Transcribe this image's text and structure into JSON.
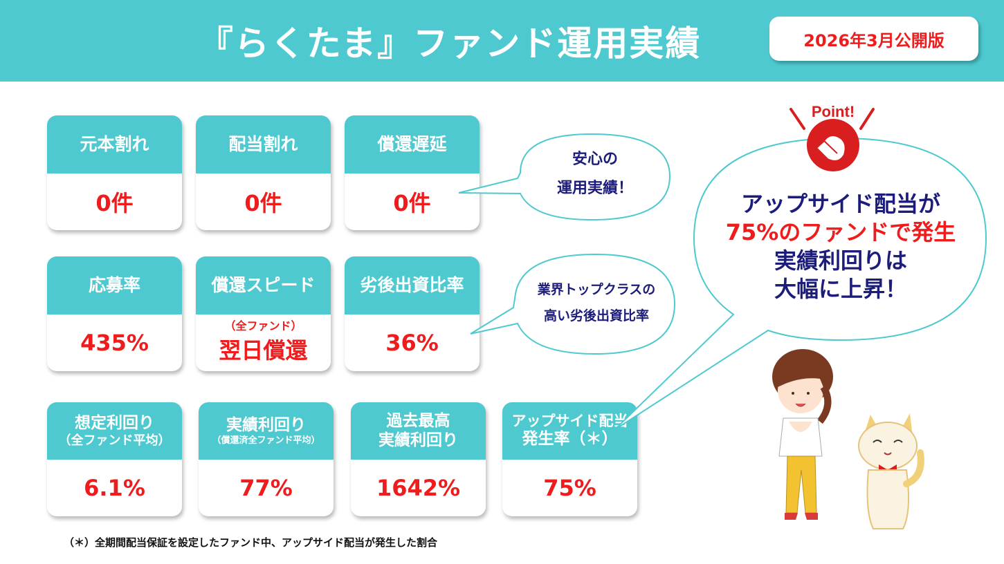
{
  "header": {
    "title": "『らくたま』ファンド運用実績",
    "edition": "2026年3月公開版"
  },
  "colors": {
    "accent": "#4ec9cf",
    "value": "#ee1c1c",
    "bubble_text": "#1c1c7a"
  },
  "row1": [
    {
      "label": "元本割れ",
      "value": "0件"
    },
    {
      "label": "配当割れ",
      "value": "0件"
    },
    {
      "label": "償還遅延",
      "value": "0件"
    }
  ],
  "row2": [
    {
      "label": "応募率",
      "value": "435%"
    },
    {
      "label": "償還スピード",
      "note": "（全ファンド）",
      "value": "翌日償還"
    },
    {
      "label": "劣後出資比率",
      "value": "36%"
    }
  ],
  "row3": [
    {
      "label": "想定利回り",
      "sub": "（全ファンド平均）",
      "value": "6.1%"
    },
    {
      "label": "実績利回り",
      "sub": "（償還済全ファンド平均）",
      "value": "77%"
    },
    {
      "label": "過去最高",
      "sub": "実績利回り",
      "value": "1642%"
    },
    {
      "label": "アップサイド配当",
      "sub": "発生率（＊）",
      "value": "75%"
    }
  ],
  "bubbles": {
    "safe_line1": "安心の",
    "safe_line2": "運用実績！",
    "industry_line1": "業界トップクラスの",
    "industry_line2": "高い劣後出資比率",
    "point_label": "Point!",
    "point_line1": "アップサイド配当が",
    "point_line2": "75%のファンドで発生",
    "point_line3": "実績利回りは",
    "point_line4": "大幅に上昇！"
  },
  "footnote": "（＊）全期間配当保証を設定したファンド中、アップサイド配当が発生した割合"
}
